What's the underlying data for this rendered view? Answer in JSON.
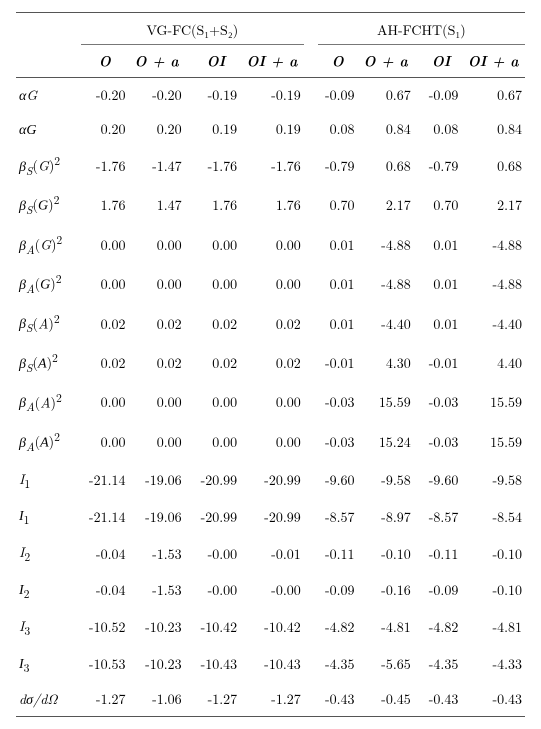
{
  "headers": {
    "group1": "VG-FC(S₁+S₂)",
    "group2": "AH-FCHT(S₁)",
    "sub": {
      "O": "O",
      "Oa": "O + a",
      "OI": "OI",
      "OIa": "OI + a"
    }
  },
  "rows": [
    {
      "label_html": "<i>αG</i>",
      "g1": [
        "-0.20",
        "-0.20",
        "-0.19",
        "-0.19"
      ],
      "g2": [
        "-0.09",
        "0.67",
        "-0.09",
        "0.67"
      ]
    },
    {
      "label_html": "<i>α<span class=\"cal\">G</span></i>",
      "g1": [
        "0.20",
        "0.20",
        "0.19",
        "0.19"
      ],
      "g2": [
        "0.08",
        "0.84",
        "0.08",
        "0.84"
      ]
    },
    {
      "label_html": "<i>β<sub>S</sub></i>(<i>G</i>)<sup>2</sup>",
      "g1": [
        "-1.76",
        "-1.47",
        "-1.76",
        "-1.76"
      ],
      "g2": [
        "-0.79",
        "0.68",
        "-0.79",
        "0.68"
      ]
    },
    {
      "label_html": "<i>β<sub>S</sub></i>(<span class=\"cal\">G</span>)<sup>2</sup>",
      "g1": [
        "1.76",
        "1.47",
        "1.76",
        "1.76"
      ],
      "g2": [
        "0.70",
        "2.17",
        "0.70",
        "2.17"
      ]
    },
    {
      "label_html": "<i>β<sub>A</sub></i>(<i>G</i>)<sup>2</sup>",
      "g1": [
        "0.00",
        "0.00",
        "0.00",
        "0.00"
      ],
      "g2": [
        "0.01",
        "-4.88",
        "0.01",
        "-4.88"
      ]
    },
    {
      "label_html": "<i>β<sub>A</sub></i>(<span class=\"cal\">G</span>)<sup>2</sup>",
      "g1": [
        "0.00",
        "0.00",
        "0.00",
        "0.00"
      ],
      "g2": [
        "0.01",
        "-4.88",
        "0.01",
        "-4.88"
      ]
    },
    {
      "label_html": "<i>β<sub>S</sub></i>(<i>A</i>)<sup>2</sup>",
      "g1": [
        "0.02",
        "0.02",
        "0.02",
        "0.02"
      ],
      "g2": [
        "0.01",
        "-4.40",
        "0.01",
        "-4.40"
      ]
    },
    {
      "label_html": "<i>β<sub>S</sub></i>(<span class=\"cal\">A</span>)<sup>2</sup>",
      "g1": [
        "0.02",
        "0.02",
        "0.02",
        "0.02"
      ],
      "g2": [
        "-0.01",
        "4.30",
        "-0.01",
        "4.40"
      ]
    },
    {
      "label_html": "<i>β<sub>A</sub></i>(<i>A</i>)<sup>2</sup>",
      "g1": [
        "0.00",
        "0.00",
        "0.00",
        "0.00"
      ],
      "g2": [
        "-0.03",
        "15.59",
        "-0.03",
        "15.59"
      ]
    },
    {
      "label_html": "<i>β<sub>A</sub></i>(<span class=\"cal\">A</span>)<sup>2</sup>",
      "g1": [
        "0.00",
        "0.00",
        "0.00",
        "0.00"
      ],
      "g2": [
        "-0.03",
        "15.24",
        "-0.03",
        "15.59"
      ]
    },
    {
      "label_html": "<i>I</i><sub>1</sub>",
      "g1": [
        "-21.14",
        "-19.06",
        "-20.99",
        "-20.99"
      ],
      "g2": [
        "-9.60",
        "-9.58",
        "-9.60",
        "-9.58"
      ]
    },
    {
      "label_html": "<span class=\"cal\">I</span><sub>1</sub>",
      "g1": [
        "-21.14",
        "-19.06",
        "-20.99",
        "-20.99"
      ],
      "g2": [
        "-8.57",
        "-8.97",
        "-8.57",
        "-8.54"
      ]
    },
    {
      "label_html": "<i>I</i><sub>2</sub>",
      "g1": [
        "-0.04",
        "-1.53",
        "-0.00",
        "-0.01"
      ],
      "g2": [
        "-0.11",
        "-0.10",
        "-0.11",
        "-0.10"
      ]
    },
    {
      "label_html": "<span class=\"cal\">I</span><sub>2</sub>",
      "g1": [
        "-0.04",
        "-1.53",
        "-0.00",
        "-0.00"
      ],
      "g2": [
        "-0.09",
        "-0.16",
        "-0.09",
        "-0.10"
      ]
    },
    {
      "label_html": "<i>I</i><sub>3</sub>",
      "g1": [
        "-10.52",
        "-10.23",
        "-10.42",
        "-10.42"
      ],
      "g2": [
        "-4.82",
        "-4.81",
        "-4.82",
        "-4.81"
      ]
    },
    {
      "label_html": "<span class=\"cal\">I</span><sub>3</sub>",
      "g1": [
        "-10.53",
        "-10.23",
        "-10.43",
        "-10.43"
      ],
      "g2": [
        "-4.35",
        "-5.65",
        "-4.35",
        "-4.33"
      ]
    },
    {
      "label_html": "<i>dσ/dΩ</i>",
      "g1": [
        "-1.27",
        "-1.06",
        "-1.27",
        "-1.27"
      ],
      "g2": [
        "-0.43",
        "-0.45",
        "-0.43",
        "-0.43"
      ]
    }
  ]
}
